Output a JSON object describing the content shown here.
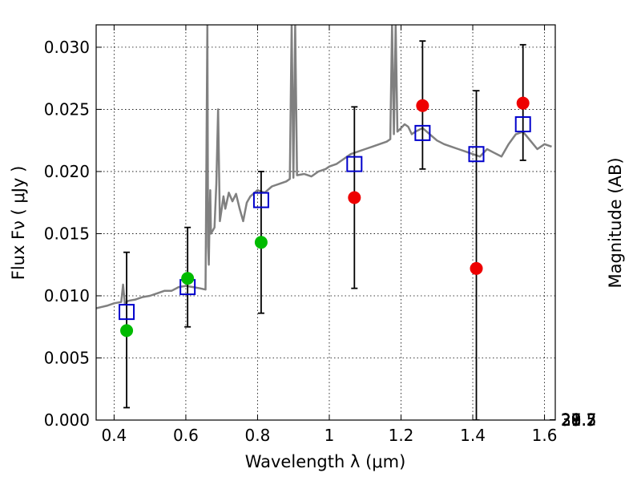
{
  "chart_data": {
    "type": "scatter",
    "xlabel": "Wavelength  λ (μm)",
    "ylabel_left": "Flux  Fν  ( μJy )",
    "ylabel_right": "Magnitude (AB)",
    "xlim": [
      0.35,
      1.63
    ],
    "ylim": [
      0.0,
      0.0318
    ],
    "grid": true,
    "x_ticks": [
      0.4,
      0.6,
      0.8,
      1.0,
      1.2,
      1.4,
      1.6
    ],
    "x_tick_labels": [
      "0.4",
      "0.6",
      "0.8",
      "1",
      "1.2",
      "1.4",
      "1.6"
    ],
    "y_ticks": [
      0.0,
      0.005,
      0.01,
      0.015,
      0.02,
      0.025,
      0.03
    ],
    "y_tick_labels": [
      "0.000",
      "0.005",
      "0.010",
      "0.015",
      "0.020",
      "0.025",
      "0.030"
    ],
    "right_axis": {
      "type": "AB magnitude",
      "tick_labels": [
        "27.7",
        "28",
        "28.2",
        "28.5",
        "29",
        "29.5",
        "30",
        "31"
      ],
      "tick_values": [
        27.7,
        28.0,
        28.2,
        28.5,
        29.0,
        29.5,
        30.0,
        31.0
      ]
    },
    "series": [
      {
        "role": "model spectrum",
        "kind": "line",
        "color": "#808080",
        "x": [
          0.35,
          0.38,
          0.4,
          0.42,
          0.425,
          0.43,
          0.44,
          0.46,
          0.48,
          0.5,
          0.52,
          0.54,
          0.56,
          0.58,
          0.6,
          0.62,
          0.64,
          0.655,
          0.66,
          0.662,
          0.664,
          0.666,
          0.668,
          0.67,
          0.68,
          0.685,
          0.69,
          0.695,
          0.7,
          0.705,
          0.71,
          0.72,
          0.73,
          0.74,
          0.75,
          0.76,
          0.77,
          0.78,
          0.8,
          0.82,
          0.84,
          0.86,
          0.88,
          0.89,
          0.895,
          0.9,
          0.905,
          0.91,
          0.93,
          0.95,
          0.97,
          0.99,
          1.0,
          1.02,
          1.04,
          1.06,
          1.08,
          1.1,
          1.12,
          1.14,
          1.16,
          1.17,
          1.175,
          1.18,
          1.185,
          1.19,
          1.2,
          1.21,
          1.22,
          1.23,
          1.24,
          1.26,
          1.28,
          1.3,
          1.32,
          1.34,
          1.36,
          1.38,
          1.4,
          1.42,
          1.44,
          1.46,
          1.48,
          1.5,
          1.52,
          1.54,
          1.56,
          1.58,
          1.6,
          1.62
        ],
        "y": [
          0.009,
          0.0092,
          0.0094,
          0.0095,
          0.0109,
          0.0094,
          0.0096,
          0.0097,
          0.0099,
          0.01,
          0.0102,
          0.0104,
          0.0104,
          0.0107,
          0.0108,
          0.0107,
          0.0106,
          0.0105,
          0.0318,
          0.014,
          0.0125,
          0.016,
          0.0185,
          0.015,
          0.0155,
          0.019,
          0.025,
          0.016,
          0.017,
          0.018,
          0.017,
          0.0183,
          0.0176,
          0.0182,
          0.017,
          0.016,
          0.0175,
          0.018,
          0.0185,
          0.0183,
          0.0188,
          0.019,
          0.0192,
          0.0194,
          0.0318,
          0.0195,
          0.0318,
          0.0197,
          0.0198,
          0.0196,
          0.02,
          0.0202,
          0.0204,
          0.0206,
          0.021,
          0.0214,
          0.0216,
          0.0218,
          0.022,
          0.0222,
          0.0224,
          0.0226,
          0.0318,
          0.023,
          0.0318,
          0.0232,
          0.0235,
          0.0238,
          0.0236,
          0.023,
          0.0232,
          0.0235,
          0.023,
          0.0225,
          0.0222,
          0.022,
          0.0218,
          0.0216,
          0.0214,
          0.0212,
          0.0218,
          0.0215,
          0.0212,
          0.0222,
          0.023,
          0.0232,
          0.0225,
          0.0218,
          0.0222,
          0.022
        ]
      },
      {
        "role": "model photometry",
        "kind": "open-square",
        "color": "#0000cc",
        "x": [
          0.435,
          0.605,
          0.81,
          1.07,
          1.26,
          1.41,
          1.54
        ],
        "y": [
          0.0087,
          0.0107,
          0.0177,
          0.0206,
          0.0231,
          0.0214,
          0.0238
        ]
      },
      {
        "role": "observed (green)",
        "kind": "filled-circle",
        "color": "#00bb00",
        "x": [
          0.435,
          0.605,
          0.81
        ],
        "y": [
          0.0072,
          0.0114,
          0.0143
        ],
        "err_low": [
          0.0062,
          0.0039,
          0.0057
        ],
        "err_high": [
          0.0063,
          0.0041,
          0.0057
        ]
      },
      {
        "role": "observed (red)",
        "kind": "filled-circle",
        "color": "#ee0000",
        "x": [
          1.07,
          1.26,
          1.41,
          1.54
        ],
        "y": [
          0.0179,
          0.0253,
          0.0122,
          0.0255
        ],
        "err_low": [
          0.0073,
          0.0051,
          0.0122,
          0.0046
        ],
        "err_high": [
          0.0073,
          0.0052,
          0.0143,
          0.0047
        ]
      }
    ]
  }
}
